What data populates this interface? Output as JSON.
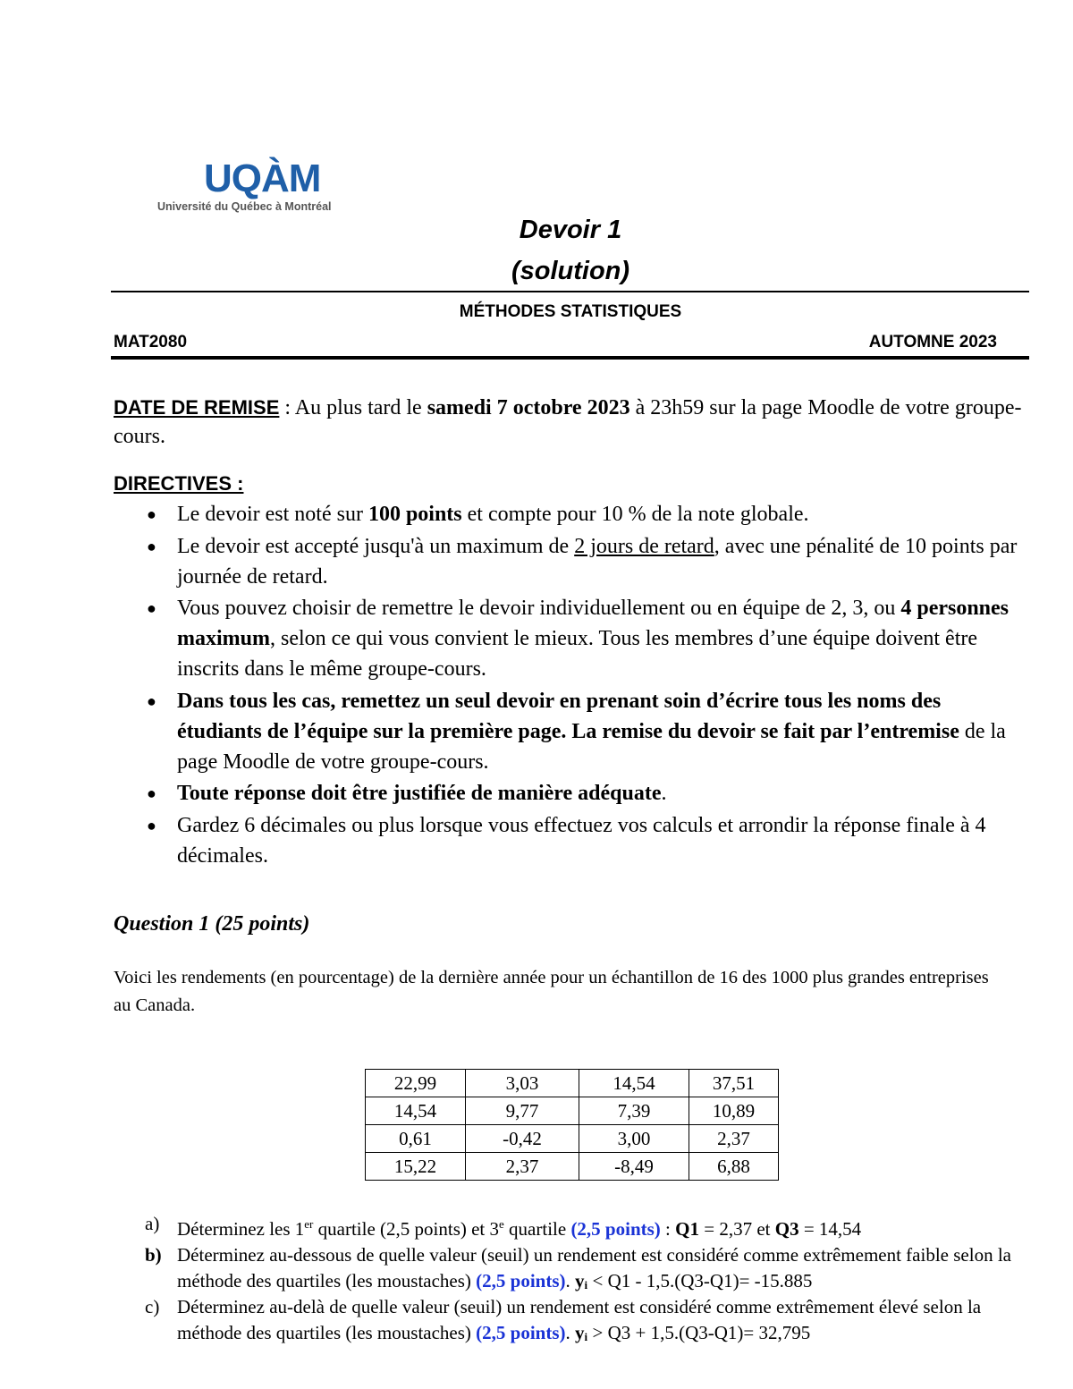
{
  "logo": {
    "mark": "UQÀM",
    "subtitle": "Université du Québec à Montréal",
    "color": "#1f5fa8"
  },
  "title": {
    "line1": "Devoir 1",
    "line2": "(solution)"
  },
  "course": {
    "subject": "MÉTHODES STATISTIQUES",
    "code": "MAT2080",
    "term": "AUTOMNE 2023"
  },
  "due": {
    "label": "DATE DE REMISE",
    "segments": [
      {
        "t": " :  Au plus tard le "
      },
      {
        "t": "samedi 7 octobre 2023",
        "b": true
      },
      {
        "t": " à 23h59 sur la page Moodle de votre groupe-cours."
      }
    ]
  },
  "directives": {
    "label": "DIRECTIVES :",
    "items": [
      [
        {
          "t": "Le devoir est noté sur "
        },
        {
          "t": "100 points",
          "b": true
        },
        {
          "t": " et compte pour 10 % de la note globale."
        }
      ],
      [
        {
          "t": "Le devoir est accepté jusqu'à un maximum de "
        },
        {
          "t": "2 jours de retard",
          "u": true
        },
        {
          "t": ", avec une pénalité de 10 points par journée de retard."
        }
      ],
      [
        {
          "t": "Vous pouvez choisir de remettre le devoir individuellement ou en équipe de 2, 3, ou "
        },
        {
          "t": "4 personnes maximum",
          "b": true
        },
        {
          "t": ", selon ce qui vous convient le mieux. Tous les membres d’une équipe doivent être inscrits dans le même groupe-cours."
        }
      ],
      [
        {
          "t": "Dans tous les cas, remettez un seul devoir en prenant soin d’écrire tous les noms des étudiants de l’équipe sur la première page. La remise du devoir se fait par l’entremise",
          "b": true
        },
        {
          "t": " de la page Moodle de votre groupe-cours."
        }
      ],
      [
        {
          "t": "Toute réponse doit être justifiée de manière adéquate",
          "b": true
        },
        {
          "t": "."
        }
      ],
      [
        {
          "t": "Gardez 6 décimales ou plus lorsque vous effectuez vos calculs et arrondir la réponse finale à 4 décimales."
        }
      ]
    ]
  },
  "question1": {
    "title": "Question 1 (25 points)",
    "intro": "Voici les rendements (en pourcentage) de la dernière année pour un échantillon de 16 des 1000 plus grandes entreprises au Canada.",
    "table": [
      [
        "22,99",
        "3,03",
        "14,54",
        "37,51"
      ],
      [
        "14,54",
        "9,77",
        "7,39",
        "10,89"
      ],
      [
        "0,61",
        "-0,42",
        "3,00",
        "2,37"
      ],
      [
        "15,22",
        "2,37",
        "-8,49",
        "6,88"
      ]
    ],
    "parts": [
      {
        "marker": "a)",
        "segments": [
          {
            "t": "Déterminez les 1"
          },
          {
            "t": "er",
            "sup": true
          },
          {
            "t": " quartile (2,5 points) et 3"
          },
          {
            "t": "e",
            "sup": true
          },
          {
            "t": " quartile "
          },
          {
            "t": "(2,5 points)",
            "blue": true
          },
          {
            "t": " : "
          },
          {
            "t": "Q1",
            "b": true
          },
          {
            "t": " = 2,37 et "
          },
          {
            "t": "Q3",
            "b": true
          },
          {
            "t": " = 14,54"
          }
        ]
      },
      {
        "marker": "b)",
        "segments": [
          {
            "t": "Déterminez au-dessous de quelle valeur (seuil) un rendement est considéré comme extrêmement faible selon la méthode des quartiles (les moustaches) "
          },
          {
            "t": "(2,5 points)",
            "blue": true
          },
          {
            "t": ". "
          },
          {
            "t": "yᵢ",
            "b": true
          },
          {
            "t": "  < Q1 - 1,5.(Q3-Q1)= -15.885"
          }
        ]
      },
      {
        "marker": "c)",
        "segments": [
          {
            "t": "Déterminez au-delà de quelle valeur (seuil) un rendement est considéré comme extrêmement élevé selon la méthode des quartiles (les moustaches) "
          },
          {
            "t": "(2,5 points)",
            "blue": true
          },
          {
            "t": ". "
          },
          {
            "t": "yᵢ",
            "b": true
          },
          {
            "t": "  >  Q3 + 1,5.(Q3-Q1)= 32,795"
          }
        ]
      }
    ]
  },
  "colors": {
    "highlight_blue": "#1a33d6"
  }
}
